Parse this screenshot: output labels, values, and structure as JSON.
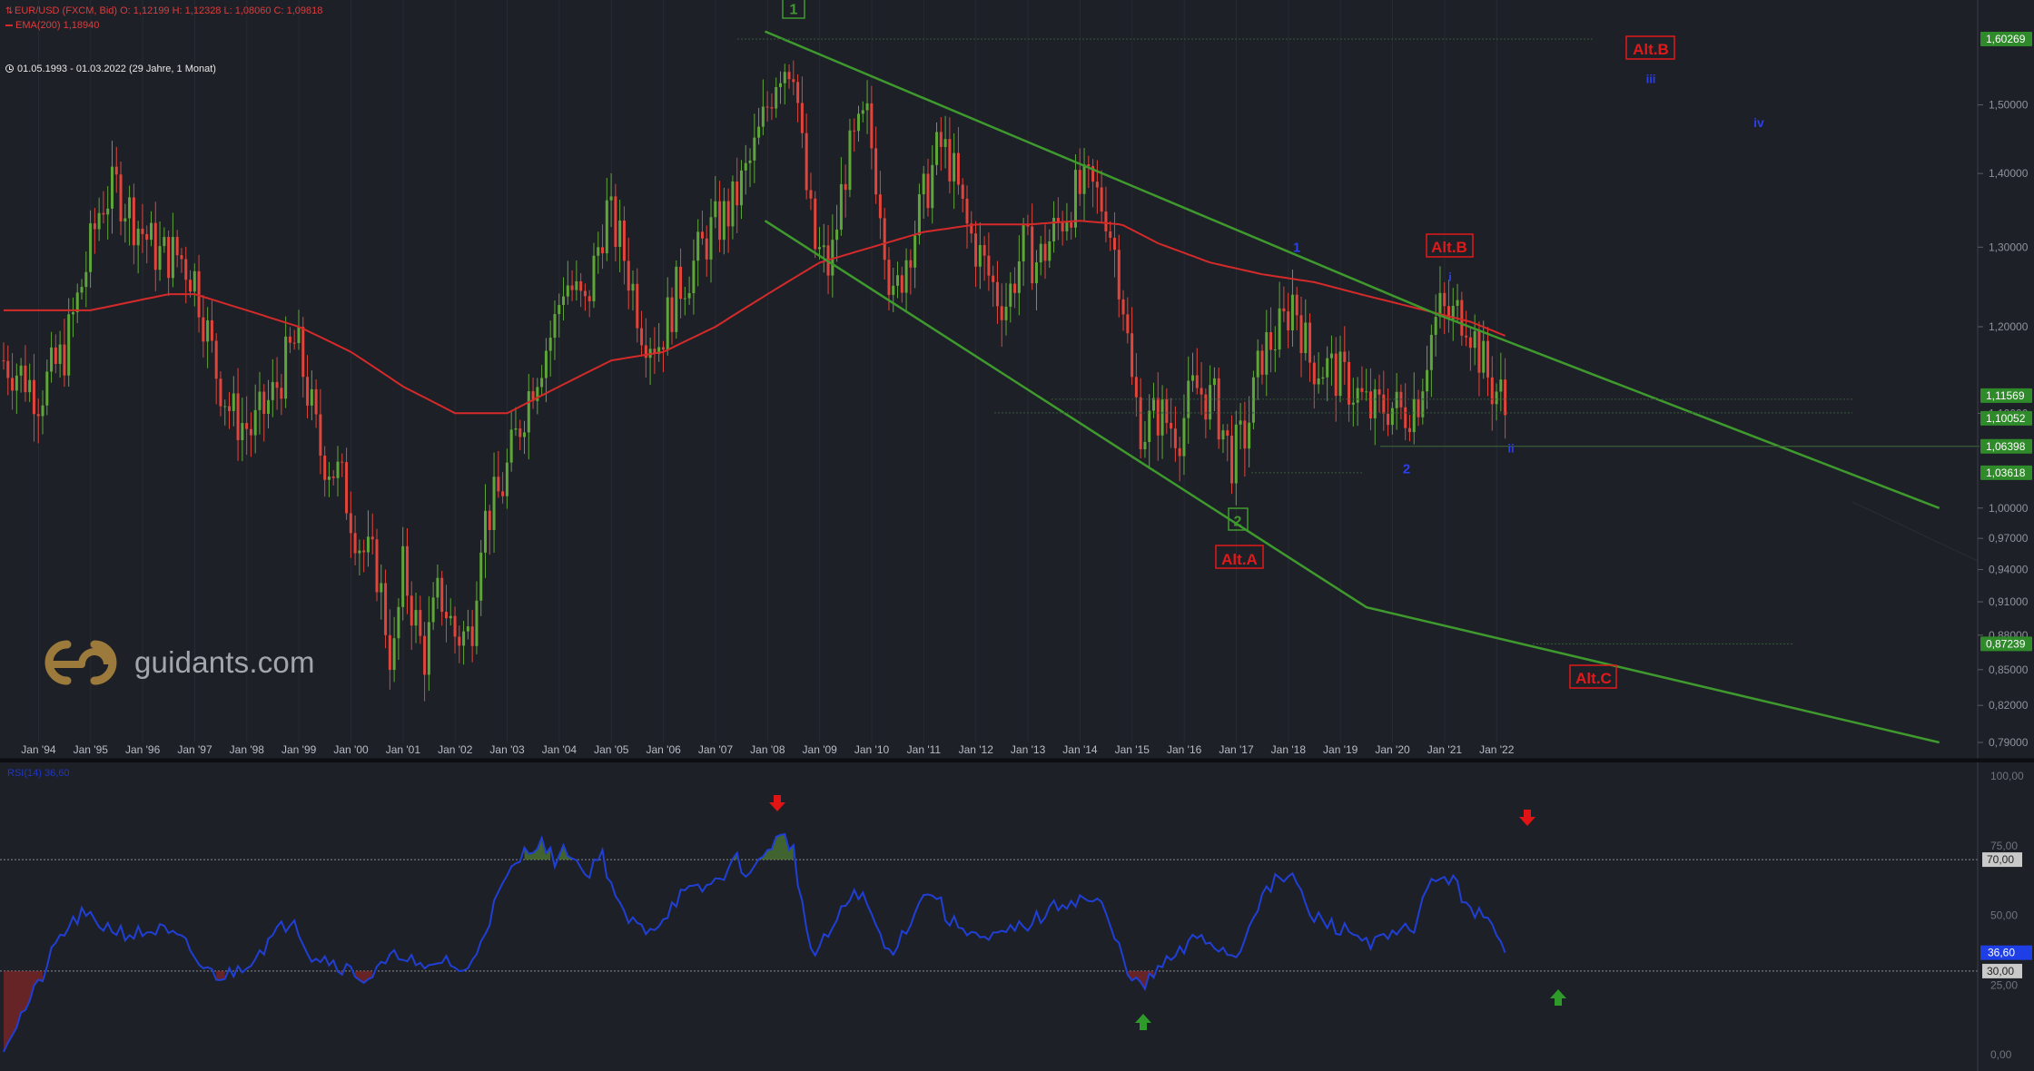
{
  "header": {
    "symbol_line": "EUR/USD (FXCM, Bid)  O: 1,12199  H: 1,12328  L: 1,08060  C: 1,09818",
    "ema_line": "EMA(200)  1,18940",
    "hidden_line": "",
    "range_line": "01.05.1993 - 01.03.2022   (29 Jahre, 1 Monat)"
  },
  "logo": {
    "text": "guidants.com",
    "icon": "guidants-logo-icon"
  },
  "colors": {
    "background": "#1e2027",
    "bull": "#5fa63a",
    "bear": "#e0443a",
    "ema": "#d42a2a",
    "channel": "#3f9a2e",
    "rsi": "#1f3fd6",
    "wave_blue": "#2a3ff0",
    "alt_red": "#e01a1a"
  },
  "chart_data": [
    {
      "type": "candlestick",
      "title": "EUR/USD (FXCM, Bid)",
      "y_scale": "log",
      "ylim": [
        0.79,
        1.62
      ],
      "x_range": [
        "1993-05",
        "2022-03"
      ],
      "x_tick_labels": [
        "Jan '94",
        "Jan '95",
        "Jan '96",
        "Jan '97",
        "Jan '98",
        "Jan '99",
        "Jan '00",
        "Jan '01",
        "Jan '02",
        "Jan '03",
        "Jan '04",
        "Jan '05",
        "Jan '06",
        "Jan '07",
        "Jan '08",
        "Jan '09",
        "Jan '10",
        "Jan '11",
        "Jan '12",
        "Jan '13",
        "Jan '14",
        "Jan '15",
        "Jan '16",
        "Jan '17",
        "Jan '18",
        "Jan '19",
        "Jan '20",
        "Jan '21",
        "Jan '22"
      ],
      "y_tick_labels": [
        "0,79000",
        "0,82000",
        "0,85000",
        "0,88000",
        "0,91000",
        "0,94000",
        "0,97000",
        "1,00000",
        "1,10000",
        "1,20000",
        "1,30000",
        "1,40000",
        "1,50000"
      ],
      "price_tags": [
        {
          "label": "1,60269",
          "value": 1.60269
        },
        {
          "label": "1,11569",
          "value": 1.11569
        },
        {
          "label": "1,10052",
          "value": 1.10052
        },
        {
          "label": "1,06398",
          "value": 1.06398
        },
        {
          "label": "1,03618",
          "value": 1.03618
        },
        {
          "label": "0,87239",
          "value": 0.87239
        }
      ],
      "close_series": [
        [
          1993.33,
          1.16
        ],
        [
          1993.75,
          1.14
        ],
        [
          1994.0,
          1.12
        ],
        [
          1994.5,
          1.17
        ],
        [
          1994.9,
          1.27
        ],
        [
          1995.2,
          1.36
        ],
        [
          1995.5,
          1.38
        ],
        [
          1995.9,
          1.33
        ],
        [
          1996.3,
          1.29
        ],
        [
          1996.7,
          1.29
        ],
        [
          1997.0,
          1.26
        ],
        [
          1997.4,
          1.15
        ],
        [
          1997.7,
          1.1
        ],
        [
          1998.1,
          1.08
        ],
        [
          1998.5,
          1.12
        ],
        [
          1998.9,
          1.18
        ],
        [
          1999.0,
          1.17
        ],
        [
          1999.4,
          1.06
        ],
        [
          1999.8,
          1.03
        ],
        [
          2000.2,
          0.96
        ],
        [
          2000.5,
          0.94
        ],
        [
          2000.8,
          0.85
        ],
        [
          2001.0,
          0.94
        ],
        [
          2001.4,
          0.86
        ],
        [
          2001.7,
          0.92
        ],
        [
          2002.0,
          0.88
        ],
        [
          2002.3,
          0.88
        ],
        [
          2002.5,
          0.98
        ],
        [
          2002.9,
          1.02
        ],
        [
          2003.2,
          1.08
        ],
        [
          2003.5,
          1.14
        ],
        [
          2003.9,
          1.2
        ],
        [
          2004.1,
          1.26
        ],
        [
          2004.5,
          1.22
        ],
        [
          2004.9,
          1.35
        ],
        [
          2005.2,
          1.3
        ],
        [
          2005.6,
          1.2
        ],
        [
          2005.9,
          1.18
        ],
        [
          2006.3,
          1.25
        ],
        [
          2006.6,
          1.28
        ],
        [
          2006.9,
          1.32
        ],
        [
          2007.3,
          1.35
        ],
        [
          2007.7,
          1.42
        ],
        [
          2007.9,
          1.47
        ],
        [
          2008.2,
          1.56
        ],
        [
          2008.5,
          1.57
        ],
        [
          2008.7,
          1.4
        ],
        [
          2008.9,
          1.3
        ],
        [
          2009.2,
          1.27
        ],
        [
          2009.5,
          1.41
        ],
        [
          2009.9,
          1.48
        ],
        [
          2010.2,
          1.35
        ],
        [
          2010.4,
          1.22
        ],
        [
          2010.7,
          1.3
        ],
        [
          2010.9,
          1.34
        ],
        [
          2011.3,
          1.44
        ],
        [
          2011.5,
          1.42
        ],
        [
          2011.8,
          1.33
        ],
        [
          2012.0,
          1.3
        ],
        [
          2012.4,
          1.24
        ],
        [
          2012.6,
          1.23
        ],
        [
          2012.9,
          1.3
        ],
        [
          2013.2,
          1.28
        ],
        [
          2013.5,
          1.32
        ],
        [
          2013.9,
          1.37
        ],
        [
          2014.2,
          1.38
        ],
        [
          2014.5,
          1.35
        ],
        [
          2014.8,
          1.25
        ],
        [
          2015.0,
          1.13
        ],
        [
          2015.2,
          1.08
        ],
        [
          2015.5,
          1.1
        ],
        [
          2015.9,
          1.08
        ],
        [
          2016.2,
          1.13
        ],
        [
          2016.6,
          1.11
        ],
        [
          2016.9,
          1.05
        ],
        [
          2017.2,
          1.08
        ],
        [
          2017.5,
          1.17
        ],
        [
          2017.9,
          1.2
        ],
        [
          2018.1,
          1.24
        ],
        [
          2018.4,
          1.16
        ],
        [
          2018.8,
          1.15
        ],
        [
          2019.2,
          1.13
        ],
        [
          2019.6,
          1.1
        ],
        [
          2019.9,
          1.11
        ],
        [
          2020.2,
          1.1
        ],
        [
          2020.5,
          1.12
        ],
        [
          2020.7,
          1.18
        ],
        [
          2020.9,
          1.22
        ],
        [
          2021.1,
          1.21
        ],
        [
          2021.4,
          1.22
        ],
        [
          2021.6,
          1.18
        ],
        [
          2021.9,
          1.13
        ],
        [
          2022.1,
          1.12
        ],
        [
          2022.17,
          1.098
        ]
      ],
      "series": [
        {
          "name": "EMA(200)",
          "values": [
            [
              1993.33,
              1.22
            ],
            [
              1995.0,
              1.22
            ],
            [
              1996.5,
              1.24
            ],
            [
              1997.0,
              1.24
            ],
            [
              1998.0,
              1.22
            ],
            [
              1999.0,
              1.2
            ],
            [
              2000.0,
              1.17
            ],
            [
              2001.0,
              1.13
            ],
            [
              2002.0,
              1.1
            ],
            [
              2003.0,
              1.1
            ],
            [
              2004.0,
              1.13
            ],
            [
              2005.0,
              1.16
            ],
            [
              2006.0,
              1.17
            ],
            [
              2007.0,
              1.2
            ],
            [
              2008.0,
              1.24
            ],
            [
              2009.0,
              1.28
            ],
            [
              2010.0,
              1.3
            ],
            [
              2011.0,
              1.32
            ],
            [
              2012.0,
              1.33
            ],
            [
              2013.0,
              1.33
            ],
            [
              2014.0,
              1.335
            ],
            [
              2014.8,
              1.33
            ],
            [
              2015.5,
              1.305
            ],
            [
              2016.5,
              1.28
            ],
            [
              2017.5,
              1.265
            ],
            [
              2018.5,
              1.255
            ],
            [
              2019.5,
              1.238
            ],
            [
              2020.5,
              1.222
            ],
            [
              2021.5,
              1.206
            ],
            [
              2022.17,
              1.189
            ]
          ]
        },
        {
          "name": "channel-upper",
          "values": [
            [
              2007.95,
              1.615
            ],
            [
              2020.86,
              1.215
            ],
            [
              2030.5,
              1.0
            ]
          ]
        },
        {
          "name": "channel-lower",
          "values": [
            [
              2007.95,
              1.335
            ],
            [
              2019.5,
              0.905
            ],
            [
              2030.5,
              0.79
            ]
          ]
        }
      ],
      "wave_labels": [
        {
          "text": "1",
          "style": "green-box"
        },
        {
          "text": "2",
          "style": "green-box"
        },
        {
          "text": "Alt.A",
          "style": "red-box"
        },
        {
          "text": "Alt.B",
          "style": "red-box"
        },
        {
          "text": "Alt.B",
          "style": "red-box"
        },
        {
          "text": "Alt.C",
          "style": "red-box"
        },
        {
          "text": "1",
          "style": "blue"
        },
        {
          "text": "2",
          "style": "blue"
        },
        {
          "text": "i",
          "style": "blue"
        },
        {
          "text": "ii",
          "style": "blue"
        },
        {
          "text": "iii",
          "style": "blue"
        },
        {
          "text": "iv",
          "style": "blue"
        }
      ]
    },
    {
      "type": "line",
      "title": "RSI(14)  36,60",
      "ylim": [
        0,
        100
      ],
      "y_tick_labels": [
        "0,00",
        "25,00",
        "50,00",
        "75,00",
        "100,00"
      ],
      "levels": [
        {
          "label": "70,00",
          "value": 70
        },
        {
          "label": "30,00",
          "value": 30
        }
      ],
      "current": {
        "label": "36,60",
        "value": 36.6
      },
      "series": [
        {
          "name": "RSI(14)",
          "values": [
            [
              1993.33,
              3
            ],
            [
              1994.0,
              25
            ],
            [
              1994.4,
              42
            ],
            [
              1994.8,
              50
            ],
            [
              1995.3,
              46
            ],
            [
              1995.8,
              43
            ],
            [
              1996.3,
              45
            ],
            [
              1996.8,
              40
            ],
            [
              1997.2,
              30
            ],
            [
              1997.6,
              28
            ],
            [
              1998.0,
              33
            ],
            [
              1998.5,
              42
            ],
            [
              1998.9,
              50
            ],
            [
              1999.2,
              36
            ],
            [
              1999.6,
              34
            ],
            [
              2000.0,
              30
            ],
            [
              2000.3,
              27
            ],
            [
              2000.7,
              33
            ],
            [
              2001.0,
              37
            ],
            [
              2001.4,
              29
            ],
            [
              2001.8,
              35
            ],
            [
              2002.2,
              28
            ],
            [
              2002.5,
              42
            ],
            [
              2002.9,
              60
            ],
            [
              2003.3,
              72
            ],
            [
              2003.6,
              77
            ],
            [
              2003.9,
              70
            ],
            [
              2004.2,
              74
            ],
            [
              2004.5,
              64
            ],
            [
              2004.8,
              73
            ],
            [
              2005.2,
              50
            ],
            [
              2005.6,
              45
            ],
            [
              2005.9,
              47
            ],
            [
              2006.3,
              57
            ],
            [
              2006.7,
              59
            ],
            [
              2007.0,
              62
            ],
            [
              2007.4,
              70
            ],
            [
              2007.7,
              64
            ],
            [
              2008.0,
              75
            ],
            [
              2008.3,
              78
            ],
            [
              2008.5,
              74
            ],
            [
              2008.7,
              48
            ],
            [
              2008.9,
              35
            ],
            [
              2009.3,
              47
            ],
            [
              2009.7,
              60
            ],
            [
              2010.0,
              50
            ],
            [
              2010.3,
              36
            ],
            [
              2010.6,
              43
            ],
            [
              2010.9,
              55
            ],
            [
              2011.2,
              59
            ],
            [
              2011.5,
              47
            ],
            [
              2011.8,
              46
            ],
            [
              2012.2,
              40
            ],
            [
              2012.5,
              43
            ],
            [
              2012.9,
              46
            ],
            [
              2013.3,
              50
            ],
            [
              2013.7,
              55
            ],
            [
              2014.1,
              56
            ],
            [
              2014.4,
              54
            ],
            [
              2014.7,
              40
            ],
            [
              2015.0,
              28
            ],
            [
              2015.2,
              23
            ],
            [
              2015.5,
              31
            ],
            [
              2015.9,
              36
            ],
            [
              2016.3,
              43
            ],
            [
              2016.7,
              38
            ],
            [
              2017.0,
              35
            ],
            [
              2017.4,
              54
            ],
            [
              2017.8,
              63
            ],
            [
              2018.1,
              64
            ],
            [
              2018.4,
              50
            ],
            [
              2018.9,
              46
            ],
            [
              2019.3,
              43
            ],
            [
              2019.7,
              40
            ],
            [
              2020.1,
              43
            ],
            [
              2020.4,
              46
            ],
            [
              2020.7,
              60
            ],
            [
              2020.9,
              65
            ],
            [
              2021.2,
              61
            ],
            [
              2021.5,
              53
            ],
            [
              2021.8,
              48
            ],
            [
              2022.17,
              36.6
            ]
          ]
        }
      ]
    }
  ]
}
